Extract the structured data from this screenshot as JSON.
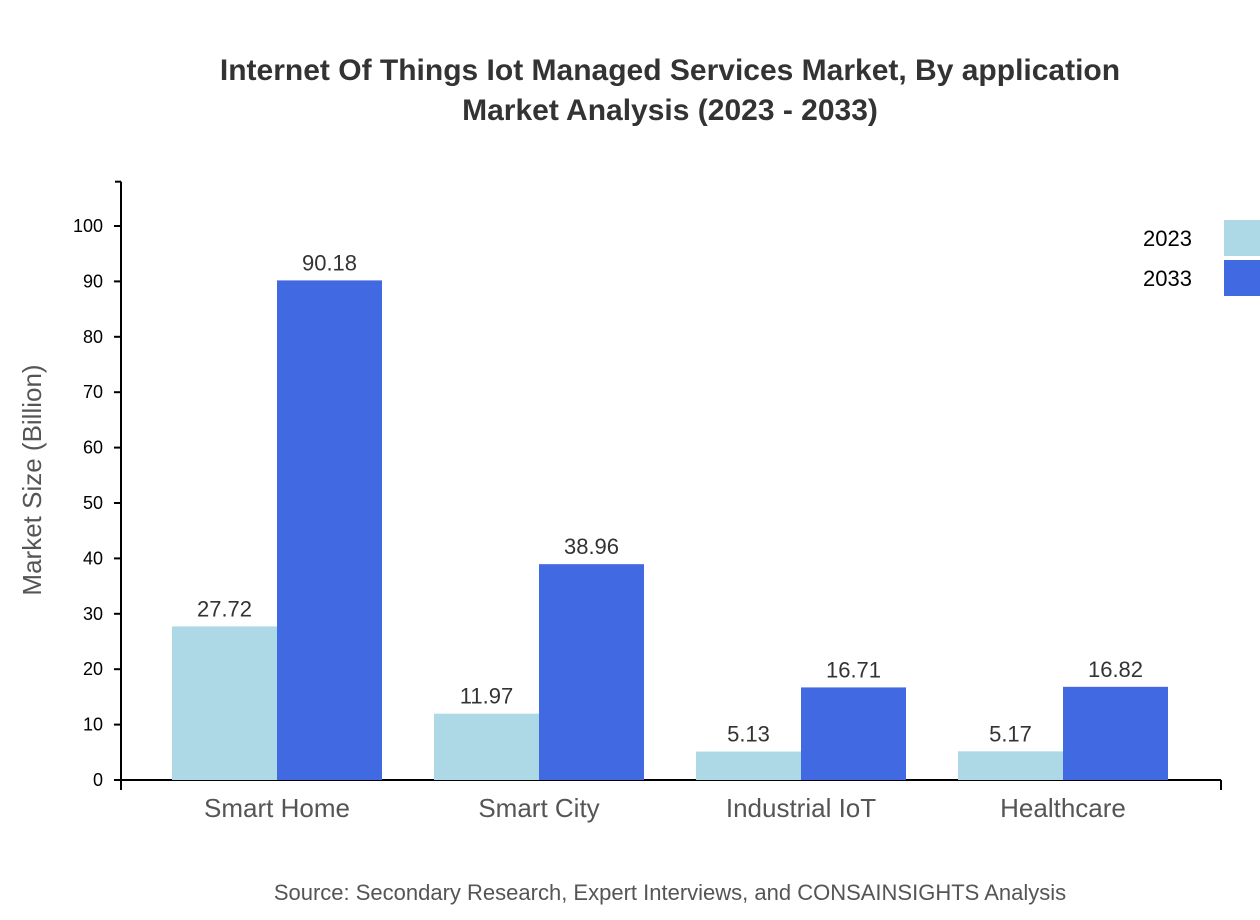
{
  "chart_data": {
    "type": "bar",
    "title_line1": "Internet Of Things Iot Managed Services Market, By application",
    "title_line2": "Market Analysis (2023 - 2033)",
    "xlabel": "",
    "ylabel": "Market Size (Billion)",
    "ylim": [
      0,
      108
    ],
    "yticks": [
      0,
      10,
      20,
      30,
      40,
      50,
      60,
      70,
      80,
      90,
      100
    ],
    "grid": false,
    "legend_placement": "top-right",
    "categories": [
      "Smart Home",
      "Smart City",
      "Industrial IoT",
      "Healthcare"
    ],
    "series": [
      {
        "name": "2023",
        "color": "#ADD8E6",
        "values": [
          27.72,
          11.97,
          5.13,
          5.17
        ]
      },
      {
        "name": "2033",
        "color": "#4169E1",
        "values": [
          90.18,
          38.96,
          16.71,
          16.82
        ]
      }
    ],
    "source": "Source: Secondary Research, Expert Interviews, and CONSAINSIGHTS Analysis"
  }
}
